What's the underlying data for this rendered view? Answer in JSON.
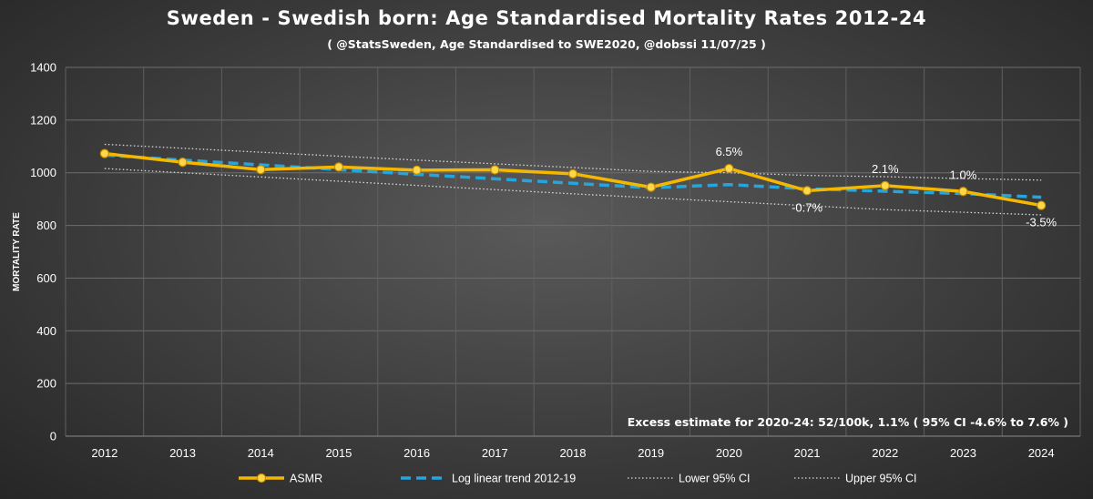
{
  "chart_data": {
    "type": "line",
    "title": "Sweden - Swedish born: Age Standardised Mortality Rates 2012-24",
    "subtitle": "( @StatsSweden, Age Standardised to SWE2020, @dobssi  11/07/25 )",
    "xlabel": "",
    "ylabel": "MORTALITY RATE",
    "ylim": [
      0,
      1400
    ],
    "yticks": [
      0,
      200,
      400,
      600,
      800,
      1000,
      1200,
      1400
    ],
    "grid": true,
    "categories": [
      "2012",
      "2013",
      "2014",
      "2015",
      "2016",
      "2017",
      "2018",
      "2019",
      "2020",
      "2021",
      "2022",
      "2023",
      "2024"
    ],
    "series": [
      {
        "name": "ASMR",
        "color": "#f5b800",
        "style": "solid-markers",
        "values": [
          1073,
          1040,
          1012,
          1022,
          1010,
          1011,
          996,
          945,
          1016,
          932,
          951,
          929,
          876
        ]
      },
      {
        "name": "Log linear trend 2012-19",
        "color": "#27a4dc",
        "style": "dashed",
        "values": [
          1067,
          1048,
          1030,
          1012,
          994,
          977,
          960,
          943,
          955,
          939,
          930,
          921,
          907
        ]
      },
      {
        "name": "Lower 95% CI",
        "color": "#d9d9d9",
        "style": "dotted",
        "values": [
          1016,
          1000,
          984,
          968,
          952,
          936,
          920,
          905,
          890,
          875,
          860,
          850,
          840
        ]
      },
      {
        "name": "Upper 95% CI",
        "color": "#d9d9d9",
        "style": "dotted",
        "values": [
          1108,
          1093,
          1078,
          1063,
          1048,
          1034,
          1020,
          1005,
          1000,
          990,
          985,
          978,
          972
        ]
      }
    ],
    "data_labels": [
      {
        "category": "2020",
        "text": "6.5%",
        "position": "above"
      },
      {
        "category": "2021",
        "text": "-0.7%",
        "position": "below"
      },
      {
        "category": "2022",
        "text": "2.1%",
        "position": "above"
      },
      {
        "category": "2023",
        "text": "1.0%",
        "position": "above"
      },
      {
        "category": "2024",
        "text": "-3.5%",
        "position": "below"
      }
    ],
    "annotation": "Excess estimate for 2020-24: 52/100k, 1.1% ( 95% CI -4.6% to 7.6% )",
    "legend_position": "bottom"
  }
}
